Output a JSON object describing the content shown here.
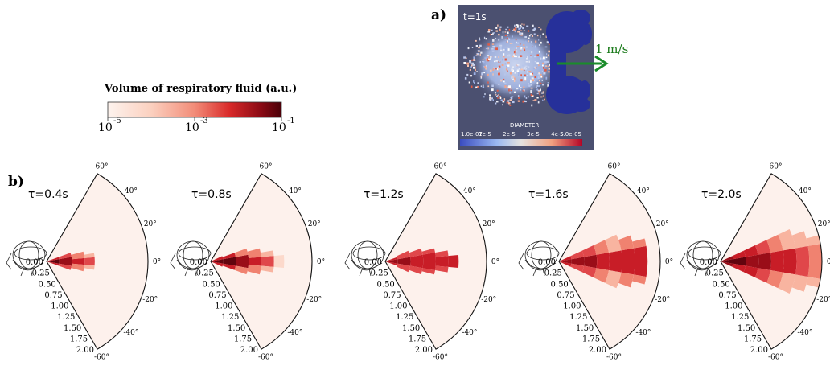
{
  "panel_labels": {
    "a": "a)",
    "b": "b)"
  },
  "colorbar": {
    "title": "Volume of respiratory fluid (a.u.)",
    "tick_labels": [
      "10",
      "10",
      "10"
    ],
    "tick_exponents": [
      "-5",
      "-3",
      "-1"
    ],
    "colors": [
      "#fdf3ee",
      "#fbd0bf",
      "#f28c78",
      "#d92a2a",
      "#8b0a14",
      "#4a0008"
    ]
  },
  "simulation": {
    "time_label": "t=1s",
    "velocity_label": "1 m/s",
    "legend_title": "DIAMETER",
    "legend_ticks": [
      "1.0e-07",
      "1e-5",
      "2e-5",
      "3e-5",
      "4e-5",
      "5.0e-05"
    ],
    "background_color": "#4b5070",
    "arrow_color": "#1a8c2a",
    "velocity_label_color": "#1a7a1a"
  },
  "chart_data": {
    "type": "polar_sector_heatmap",
    "angle_ticks": [
      "60°",
      "40°",
      "20°",
      "0°",
      "-20°",
      "-40°",
      "-60°"
    ],
    "angle_tick_values": [
      60,
      40,
      20,
      0,
      -20,
      -40,
      -60
    ],
    "radial_ticks": [
      "0.00",
      "0.25",
      "0.50",
      "0.75",
      "1.00",
      "1.25",
      "1.50",
      "1.75",
      "2.00"
    ],
    "radial_tick_values": [
      0,
      0.25,
      0.5,
      0.75,
      1.0,
      1.25,
      1.5,
      1.75,
      2.0
    ],
    "rlim": [
      0,
      2.0
    ],
    "thetalim": [
      -60,
      60
    ],
    "sector_fill": "#fdf1ec",
    "level_colors": [
      "#fdf1ec",
      "#fcd9cb",
      "#f8b4a0",
      "#f08270",
      "#e0474a",
      "#c81d27",
      "#9a0d18",
      "#62040e"
    ],
    "panels": [
      {
        "label": "τ=0.4s",
        "bins": [
          {
            "r": [
              0.0,
              0.25
            ],
            "th": [
              -10,
              10
            ],
            "level": 7
          },
          {
            "r": [
              0.0,
              0.25
            ],
            "th": [
              10,
              20
            ],
            "level": 5
          },
          {
            "r": [
              0.0,
              0.25
            ],
            "th": [
              -20,
              -10
            ],
            "level": 5
          },
          {
            "r": [
              0.25,
              0.5
            ],
            "th": [
              -10,
              10
            ],
            "level": 6
          },
          {
            "r": [
              0.25,
              0.5
            ],
            "th": [
              10,
              20
            ],
            "level": 4
          },
          {
            "r": [
              0.25,
              0.5
            ],
            "th": [
              -20,
              -10
            ],
            "level": 4
          },
          {
            "r": [
              0.5,
              0.75
            ],
            "th": [
              -5,
              5
            ],
            "level": 5
          },
          {
            "r": [
              0.5,
              0.75
            ],
            "th": [
              5,
              15
            ],
            "level": 3
          },
          {
            "r": [
              0.5,
              0.75
            ],
            "th": [
              -15,
              -5
            ],
            "level": 3
          },
          {
            "r": [
              0.75,
              0.95
            ],
            "th": [
              -5,
              5
            ],
            "level": 4
          },
          {
            "r": [
              0.75,
              0.95
            ],
            "th": [
              5,
              10
            ],
            "level": 2
          },
          {
            "r": [
              0.75,
              0.95
            ],
            "th": [
              -10,
              -5
            ],
            "level": 2
          }
        ]
      },
      {
        "label": "τ=0.8s",
        "bins": [
          {
            "r": [
              0.0,
              0.25
            ],
            "th": [
              -10,
              10
            ],
            "level": 7
          },
          {
            "r": [
              0.0,
              0.25
            ],
            "th": [
              10,
              25
            ],
            "level": 5
          },
          {
            "r": [
              0.0,
              0.25
            ],
            "th": [
              -25,
              -10
            ],
            "level": 5
          },
          {
            "r": [
              0.25,
              0.5
            ],
            "th": [
              -10,
              10
            ],
            "level": 7
          },
          {
            "r": [
              0.25,
              0.5
            ],
            "th": [
              10,
              20
            ],
            "level": 5
          },
          {
            "r": [
              0.25,
              0.5
            ],
            "th": [
              -20,
              -10
            ],
            "level": 5
          },
          {
            "r": [
              0.5,
              0.75
            ],
            "th": [
              -10,
              10
            ],
            "level": 6
          },
          {
            "r": [
              0.5,
              0.75
            ],
            "th": [
              10,
              20
            ],
            "level": 3
          },
          {
            "r": [
              0.5,
              0.75
            ],
            "th": [
              -20,
              -10
            ],
            "level": 3
          },
          {
            "r": [
              0.75,
              1.0
            ],
            "th": [
              -5,
              5
            ],
            "level": 5
          },
          {
            "r": [
              0.75,
              1.0
            ],
            "th": [
              5,
              15
            ],
            "level": 3
          },
          {
            "r": [
              0.75,
              1.0
            ],
            "th": [
              -15,
              -5
            ],
            "level": 3
          },
          {
            "r": [
              1.0,
              1.25
            ],
            "th": [
              -5,
              5
            ],
            "level": 4
          },
          {
            "r": [
              1.0,
              1.25
            ],
            "th": [
              5,
              10
            ],
            "level": 2
          },
          {
            "r": [
              1.0,
              1.25
            ],
            "th": [
              -10,
              -5
            ],
            "level": 2
          },
          {
            "r": [
              1.25,
              1.45
            ],
            "th": [
              -5,
              5
            ],
            "level": 1
          }
        ]
      },
      {
        "label": "τ=1.2s",
        "bins": [
          {
            "r": [
              0.0,
              0.25
            ],
            "th": [
              -10,
              10
            ],
            "level": 6
          },
          {
            "r": [
              0.0,
              0.25
            ],
            "th": [
              10,
              20
            ],
            "level": 5
          },
          {
            "r": [
              0.0,
              0.25
            ],
            "th": [
              -20,
              -10
            ],
            "level": 5
          },
          {
            "r": [
              0.25,
              0.5
            ],
            "th": [
              -10,
              10
            ],
            "level": 6
          },
          {
            "r": [
              0.25,
              0.5
            ],
            "th": [
              10,
              25
            ],
            "level": 4
          },
          {
            "r": [
              0.25,
              0.5
            ],
            "th": [
              -25,
              -10
            ],
            "level": 4
          },
          {
            "r": [
              0.5,
              0.75
            ],
            "th": [
              -10,
              10
            ],
            "level": 5
          },
          {
            "r": [
              0.5,
              0.75
            ],
            "th": [
              10,
              20
            ],
            "level": 4
          },
          {
            "r": [
              0.5,
              0.75
            ],
            "th": [
              -20,
              -10
            ],
            "level": 4
          },
          {
            "r": [
              0.75,
              1.0
            ],
            "th": [
              -10,
              10
            ],
            "level": 5
          },
          {
            "r": [
              0.75,
              1.0
            ],
            "th": [
              10,
              15
            ],
            "level": 4
          },
          {
            "r": [
              0.75,
              1.0
            ],
            "th": [
              -15,
              -10
            ],
            "level": 4
          },
          {
            "r": [
              1.0,
              1.25
            ],
            "th": [
              -5,
              5
            ],
            "level": 5
          },
          {
            "r": [
              1.0,
              1.25
            ],
            "th": [
              5,
              10
            ],
            "level": 4
          },
          {
            "r": [
              1.0,
              1.25
            ],
            "th": [
              -10,
              -5
            ],
            "level": 4
          },
          {
            "r": [
              1.25,
              1.45
            ],
            "th": [
              -5,
              5
            ],
            "level": 5
          }
        ]
      },
      {
        "label": "τ=1.6s",
        "bins": [
          {
            "r": [
              0.0,
              0.25
            ],
            "th": [
              -10,
              10
            ],
            "level": 6
          },
          {
            "r": [
              0.0,
              0.25
            ],
            "th": [
              10,
              25
            ],
            "level": 5
          },
          {
            "r": [
              0.0,
              0.25
            ],
            "th": [
              -25,
              -10
            ],
            "level": 5
          },
          {
            "r": [
              0.25,
              0.5
            ],
            "th": [
              -10,
              10
            ],
            "level": 6
          },
          {
            "r": [
              0.25,
              0.5
            ],
            "th": [
              10,
              25
            ],
            "level": 4
          },
          {
            "r": [
              0.25,
              0.5
            ],
            "th": [
              -25,
              -10
            ],
            "level": 4
          },
          {
            "r": [
              0.5,
              0.75
            ],
            "th": [
              -10,
              10
            ],
            "level": 6
          },
          {
            "r": [
              0.5,
              0.75
            ],
            "th": [
              10,
              25
            ],
            "level": 4
          },
          {
            "r": [
              0.5,
              0.75
            ],
            "th": [
              -25,
              -10
            ],
            "level": 4
          },
          {
            "r": [
              0.75,
              1.0
            ],
            "th": [
              -10,
              10
            ],
            "level": 5
          },
          {
            "r": [
              0.75,
              1.0
            ],
            "th": [
              10,
              25
            ],
            "level": 3
          },
          {
            "r": [
              0.75,
              1.0
            ],
            "th": [
              -25,
              -10
            ],
            "level": 3
          },
          {
            "r": [
              1.0,
              1.25
            ],
            "th": [
              -10,
              10
            ],
            "level": 5
          },
          {
            "r": [
              1.0,
              1.25
            ],
            "th": [
              10,
              25
            ],
            "level": 2
          },
          {
            "r": [
              1.0,
              1.25
            ],
            "th": [
              -25,
              -10
            ],
            "level": 2
          },
          {
            "r": [
              1.25,
              1.5
            ],
            "th": [
              -10,
              10
            ],
            "level": 5
          },
          {
            "r": [
              1.25,
              1.5
            ],
            "th": [
              10,
              20
            ],
            "level": 3
          },
          {
            "r": [
              1.25,
              1.5
            ],
            "th": [
              -20,
              -10
            ],
            "level": 3
          },
          {
            "r": [
              1.5,
              1.75
            ],
            "th": [
              -10,
              10
            ],
            "level": 5
          },
          {
            "r": [
              1.5,
              1.75
            ],
            "th": [
              10,
              15
            ],
            "level": 3
          },
          {
            "r": [
              1.5,
              1.75
            ],
            "th": [
              -15,
              -10
            ],
            "level": 3
          }
        ]
      },
      {
        "label": "τ=2.0s",
        "bins": [
          {
            "r": [
              0.0,
              0.25
            ],
            "th": [
              -10,
              10
            ],
            "level": 7
          },
          {
            "r": [
              0.0,
              0.25
            ],
            "th": [
              10,
              25
            ],
            "level": 6
          },
          {
            "r": [
              0.0,
              0.25
            ],
            "th": [
              -25,
              -10
            ],
            "level": 6
          },
          {
            "r": [
              0.25,
              0.5
            ],
            "th": [
              -10,
              10
            ],
            "level": 7
          },
          {
            "r": [
              0.25,
              0.5
            ],
            "th": [
              10,
              25
            ],
            "level": 5
          },
          {
            "r": [
              0.25,
              0.5
            ],
            "th": [
              -25,
              -10
            ],
            "level": 5
          },
          {
            "r": [
              0.5,
              0.75
            ],
            "th": [
              -10,
              10
            ],
            "level": 6
          },
          {
            "r": [
              0.5,
              0.75
            ],
            "th": [
              10,
              25
            ],
            "level": 5
          },
          {
            "r": [
              0.5,
              0.75
            ],
            "th": [
              -25,
              -10
            ],
            "level": 5
          },
          {
            "r": [
              0.75,
              1.0
            ],
            "th": [
              -10,
              10
            ],
            "level": 6
          },
          {
            "r": [
              0.75,
              1.0
            ],
            "th": [
              10,
              25
            ],
            "level": 4
          },
          {
            "r": [
              0.75,
              1.0
            ],
            "th": [
              -25,
              -10
            ],
            "level": 4
          },
          {
            "r": [
              1.0,
              1.25
            ],
            "th": [
              -10,
              10
            ],
            "level": 5
          },
          {
            "r": [
              1.0,
              1.25
            ],
            "th": [
              10,
              25
            ],
            "level": 3
          },
          {
            "r": [
              1.0,
              1.25
            ],
            "th": [
              -25,
              -10
            ],
            "level": 3
          },
          {
            "r": [
              1.25,
              1.5
            ],
            "th": [
              -10,
              10
            ],
            "level": 5
          },
          {
            "r": [
              1.25,
              1.5
            ],
            "th": [
              10,
              25
            ],
            "level": 2
          },
          {
            "r": [
              1.25,
              1.5
            ],
            "th": [
              -25,
              -10
            ],
            "level": 2
          },
          {
            "r": [
              1.5,
              1.75
            ],
            "th": [
              -10,
              10
            ],
            "level": 4
          },
          {
            "r": [
              1.5,
              1.75
            ],
            "th": [
              10,
              20
            ],
            "level": 2
          },
          {
            "r": [
              1.5,
              1.75
            ],
            "th": [
              -20,
              -10
            ],
            "level": 2
          },
          {
            "r": [
              1.75,
              2.0
            ],
            "th": [
              -10,
              10
            ],
            "level": 3
          },
          {
            "r": [
              1.75,
              2.0
            ],
            "th": [
              10,
              15
            ],
            "level": 2
          },
          {
            "r": [
              1.75,
              2.0
            ],
            "th": [
              -15,
              -10
            ],
            "level": 2
          }
        ]
      }
    ]
  }
}
